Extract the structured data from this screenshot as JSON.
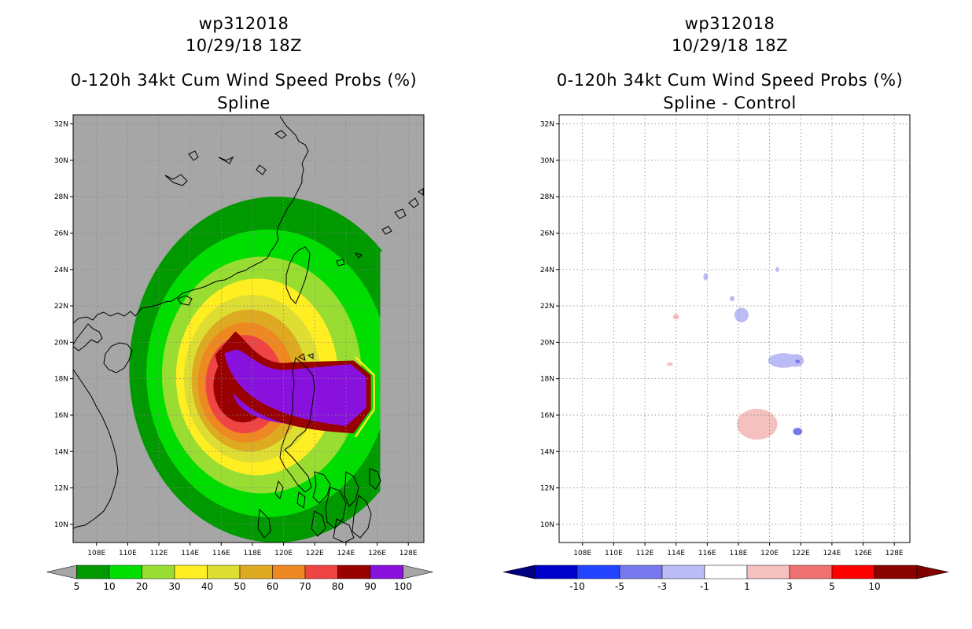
{
  "left_panel": {
    "storm": "wp312018",
    "datetime": "10/29/18 18Z",
    "product": "0-120h 34kt Cum Wind Speed Probs (%)",
    "subtitle": "Spline"
  },
  "right_panel": {
    "storm": "wp312018",
    "datetime": "10/29/18 18Z",
    "product": "0-120h 34kt Cum Wind Speed Probs (%)",
    "subtitle": "Spline - Control"
  },
  "colors": {
    "land_background": "#a6a6a6",
    "coast": "#000000",
    "grid": "#888888"
  },
  "chart_data": [
    {
      "type": "heatmap",
      "panel": "left",
      "title": "0-120h 34kt Cum Wind Speed Probs (%)",
      "subtitle": "Spline",
      "x_axis": {
        "range": [
          106.5,
          129
        ],
        "ticks": [
          "108E",
          "110E",
          "112E",
          "114E",
          "116E",
          "118E",
          "120E",
          "122E",
          "124E",
          "126E",
          "128E"
        ]
      },
      "y_axis": {
        "range": [
          9,
          32.5
        ],
        "ticks": [
          "10N",
          "12N",
          "14N",
          "16N",
          "18N",
          "20N",
          "22N",
          "24N",
          "26N",
          "28N",
          "30N",
          "32N"
        ]
      },
      "colorbar": {
        "labels": [
          "5",
          "10",
          "20",
          "30",
          "40",
          "50",
          "60",
          "70",
          "80",
          "90",
          "100"
        ],
        "colors": [
          "#009900",
          "#00dd00",
          "#99dd33",
          "#ffee22",
          "#dddd33",
          "#ddaa22",
          "#ee8822",
          "#ee4444",
          "#990000",
          "#8811dd"
        ]
      },
      "probability_levels": [
        {
          "level": 5,
          "color": "#009900",
          "center": [
            119.5,
            18.5
          ],
          "radius_lon": 9.4,
          "radius_lat": 9.5
        },
        {
          "level": 10,
          "color": "#00dd00",
          "center": [
            119.0,
            18.3
          ],
          "radius_lon": 7.8,
          "radius_lat": 7.9
        },
        {
          "level": 20,
          "color": "#99dd33",
          "center": [
            118.6,
            18.2
          ],
          "radius_lon": 6.4,
          "radius_lat": 6.5
        },
        {
          "level": 30,
          "color": "#ffee22",
          "center": [
            118.3,
            18.1
          ],
          "radius_lon": 5.2,
          "radius_lat": 5.4
        },
        {
          "level": 40,
          "color": "#dddd33",
          "center": [
            118.0,
            18.0
          ],
          "radius_lon": 4.4,
          "radius_lat": 4.6
        },
        {
          "level": 50,
          "color": "#ddaa22",
          "center": [
            117.8,
            17.9
          ],
          "radius_lon": 3.7,
          "radius_lat": 3.9
        },
        {
          "level": 60,
          "color": "#ee8822",
          "center": [
            117.6,
            17.8
          ],
          "radius_lon": 3.1,
          "radius_lat": 3.3
        },
        {
          "level": 70,
          "color": "#ee4444",
          "center": [
            117.5,
            17.7
          ],
          "radius_lon": 2.5,
          "radius_lat": 2.7
        },
        {
          "level": 80,
          "color": "#990000",
          "center": [
            117.4,
            17.6
          ],
          "radius_lon": 1.9,
          "radius_lat": 2.0
        },
        {
          "level": 90,
          "color": "#8811dd",
          "center": [
            121.0,
            17.2
          ],
          "radius_lon": 4.2,
          "radius_lat": 1.7
        }
      ]
    },
    {
      "type": "heatmap",
      "panel": "right",
      "title": "0-120h 34kt Cum Wind Speed Probs (%)",
      "subtitle": "Spline - Control",
      "x_axis": {
        "range": [
          106.5,
          129
        ],
        "ticks": [
          "108E",
          "110E",
          "112E",
          "114E",
          "116E",
          "118E",
          "120E",
          "122E",
          "124E",
          "126E",
          "128E"
        ]
      },
      "y_axis": {
        "range": [
          9,
          32.5
        ],
        "ticks": [
          "10N",
          "12N",
          "14N",
          "16N",
          "18N",
          "20N",
          "22N",
          "24N",
          "26N",
          "28N",
          "30N",
          "32N"
        ]
      },
      "colorbar": {
        "labels": [
          "-10",
          "-5",
          "-3",
          "-1",
          "1",
          "3",
          "5",
          "10"
        ],
        "colors": [
          "#0000cc",
          "#2244ff",
          "#7777ee",
          "#bbbbf5",
          "#ffffff",
          "#f5c0c0",
          "#ee7070",
          "#ff0000",
          "#880000"
        ]
      },
      "difference_patches": [
        {
          "lon": 119.2,
          "lat": 15.5,
          "rx": 1.3,
          "ry": 0.85,
          "color": "#f5c0c0"
        },
        {
          "lon": 120.9,
          "lat": 19.0,
          "rx": 1.0,
          "ry": 0.4,
          "color": "#bbbbf5"
        },
        {
          "lon": 121.7,
          "lat": 19.0,
          "rx": 0.5,
          "ry": 0.35,
          "color": "#bbbbf5"
        },
        {
          "lon": 118.2,
          "lat": 21.5,
          "rx": 0.45,
          "ry": 0.4,
          "color": "#bbbbf5"
        },
        {
          "lon": 117.6,
          "lat": 22.4,
          "rx": 0.15,
          "ry": 0.15,
          "color": "#bbbbf5"
        },
        {
          "lon": 115.9,
          "lat": 23.6,
          "rx": 0.15,
          "ry": 0.2,
          "color": "#bbbbf5"
        },
        {
          "lon": 121.8,
          "lat": 15.1,
          "rx": 0.3,
          "ry": 0.2,
          "color": "#7777ee"
        },
        {
          "lon": 121.8,
          "lat": 18.95,
          "rx": 0.15,
          "ry": 0.1,
          "color": "#7777ee"
        },
        {
          "lon": 114.0,
          "lat": 21.4,
          "rx": 0.2,
          "ry": 0.15,
          "color": "#f5c0c0"
        },
        {
          "lon": 113.6,
          "lat": 18.8,
          "rx": 0.2,
          "ry": 0.1,
          "color": "#f5c0c0"
        },
        {
          "lon": 120.5,
          "lat": 24.0,
          "rx": 0.1,
          "ry": 0.15,
          "color": "#bbbbf5"
        }
      ]
    }
  ]
}
